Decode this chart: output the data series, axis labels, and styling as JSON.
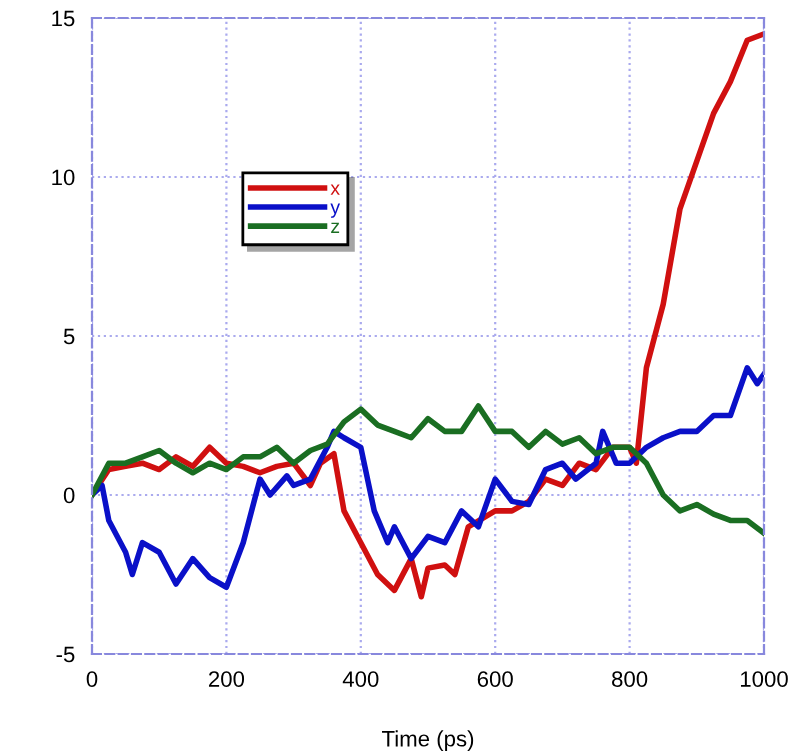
{
  "chart_data": {
    "type": "line",
    "xlabel": "Time (ps)",
    "xlim": [
      0,
      1000
    ],
    "xticks": [
      0,
      200,
      400,
      600,
      800,
      1000
    ],
    "ylim": [
      -5,
      15
    ],
    "yticks": [
      -5,
      0,
      5,
      10,
      15
    ],
    "grid": true,
    "legend": "center left",
    "marker": "none",
    "line_style": "solid",
    "series": [
      {
        "name": "x",
        "color": "#d01010",
        "x": [
          0,
          25,
          50,
          75,
          100,
          125,
          150,
          175,
          200,
          225,
          250,
          275,
          300,
          325,
          340,
          360,
          375,
          400,
          425,
          450,
          475,
          490,
          500,
          525,
          540,
          560,
          600,
          625,
          650,
          675,
          700,
          725,
          750,
          775,
          800,
          810,
          825,
          850,
          875,
          900,
          925,
          950,
          975,
          1000
        ],
        "values": [
          0,
          0.8,
          0.9,
          1.0,
          0.8,
          1.2,
          0.9,
          1.5,
          1.0,
          0.9,
          0.7,
          0.9,
          1.0,
          0.3,
          1.0,
          1.3,
          -0.5,
          -1.5,
          -2.5,
          -3.0,
          -2.0,
          -3.2,
          -2.3,
          -2.2,
          -2.5,
          -1.0,
          -0.5,
          -0.5,
          -0.2,
          0.5,
          0.3,
          1.0,
          0.8,
          1.5,
          1.5,
          1.0,
          4,
          6,
          9,
          10.5,
          12,
          13,
          14.3,
          14.5
        ]
      },
      {
        "name": "y",
        "color": "#0a10c8",
        "x": [
          0,
          15,
          25,
          50,
          60,
          75,
          100,
          125,
          150,
          175,
          200,
          225,
          250,
          265,
          290,
          300,
          325,
          350,
          360,
          375,
          400,
          420,
          440,
          450,
          475,
          500,
          525,
          550,
          575,
          600,
          625,
          650,
          675,
          700,
          720,
          750,
          760,
          780,
          800,
          825,
          850,
          875,
          900,
          925,
          950,
          975,
          990,
          1000
        ],
        "values": [
          0,
          0.3,
          -0.8,
          -1.8,
          -2.5,
          -1.5,
          -1.8,
          -2.8,
          -2.0,
          -2.6,
          -2.9,
          -1.5,
          0.5,
          0,
          0.6,
          0.3,
          0.5,
          1.5,
          2.0,
          1.8,
          1.5,
          -0.5,
          -1.5,
          -1.0,
          -2.0,
          -1.3,
          -1.5,
          -0.5,
          -1.0,
          0.5,
          -0.2,
          -0.3,
          0.8,
          1.0,
          0.5,
          1.0,
          2.0,
          1.0,
          1.0,
          1.5,
          1.8,
          2.0,
          2.0,
          2.5,
          2.5,
          4.0,
          3.5,
          3.8
        ]
      },
      {
        "name": "z",
        "color": "#1a6e22",
        "x": [
          0,
          25,
          50,
          75,
          100,
          125,
          150,
          175,
          200,
          225,
          250,
          275,
          300,
          325,
          350,
          375,
          400,
          425,
          450,
          475,
          500,
          525,
          550,
          575,
          600,
          625,
          650,
          675,
          700,
          725,
          750,
          775,
          800,
          825,
          850,
          875,
          900,
          925,
          950,
          975,
          1000
        ],
        "values": [
          0,
          1.0,
          1.0,
          1.2,
          1.4,
          1.0,
          0.7,
          1.0,
          0.8,
          1.2,
          1.2,
          1.5,
          1.0,
          1.4,
          1.6,
          2.3,
          2.7,
          2.2,
          2.0,
          1.8,
          2.4,
          2.0,
          2.0,
          2.8,
          2.0,
          2.0,
          1.5,
          2.0,
          1.6,
          1.8,
          1.3,
          1.5,
          1.5,
          1.0,
          0.0,
          -0.5,
          -0.3,
          -0.6,
          -0.8,
          -0.8,
          -1.2
        ]
      }
    ]
  }
}
